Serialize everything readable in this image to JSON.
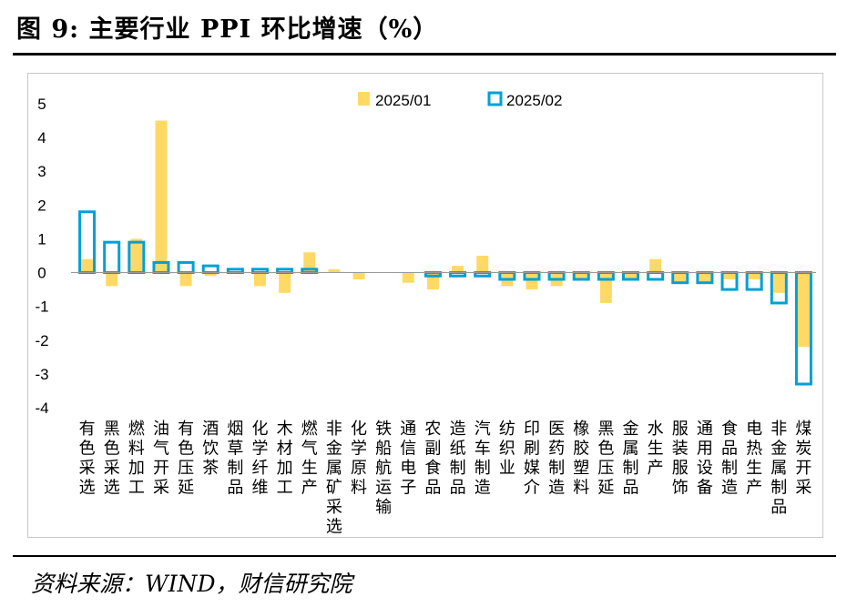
{
  "title": "图 9:  主要行业 PPI 环比增速（%）",
  "source": "资料来源：WIND，财信研究院",
  "chart_data": {
    "type": "bar",
    "title": "主要行业 PPI 环比增速（%）",
    "xlabel": "",
    "ylabel": "",
    "ylim": [
      -4,
      5
    ],
    "yticks": [
      "5",
      "4",
      "3",
      "2",
      "1",
      "0",
      "-1",
      "-2",
      "-3",
      "-4"
    ],
    "grid": false,
    "legend_position": "top-center",
    "categories": [
      "有色采选",
      "黑色采选",
      "燃料加工",
      "油气开采",
      "有色压延",
      "酒饮茶",
      "烟草制品",
      "化学纤维",
      "木材加工",
      "燃气生产",
      "非金属矿采选",
      "化学原料",
      "铁船航运输",
      "通信电子",
      "农副食品",
      "造纸制品",
      "汽车制造",
      "纺织业",
      "印刷媒介",
      "医药制造",
      "橡胶塑料",
      "黑色压延",
      "金属制品",
      "水生产",
      "服装服饰",
      "通用设备",
      "食品制造",
      "电热生产",
      "非金属制品",
      "煤炭开采"
    ],
    "series": [
      {
        "name": "2025/01",
        "color": "#FFD966",
        "style": "filled",
        "values": [
          0.4,
          -0.4,
          1.0,
          4.5,
          -0.4,
          -0.1,
          0.0,
          -0.4,
          -0.6,
          0.6,
          0.1,
          -0.2,
          0.0,
          -0.3,
          -0.5,
          0.2,
          0.5,
          -0.4,
          -0.5,
          -0.4,
          -0.2,
          -0.9,
          -0.2,
          0.4,
          -0.3,
          -0.3,
          -0.2,
          -0.2,
          -0.6,
          -2.2
        ]
      },
      {
        "name": "2025/02",
        "color": "#00A0D6",
        "style": "outline",
        "values": [
          1.8,
          0.9,
          0.9,
          0.3,
          0.3,
          0.2,
          0.1,
          0.1,
          0.1,
          0.1,
          0.0,
          0.0,
          0.0,
          0.0,
          -0.1,
          -0.1,
          -0.1,
          -0.2,
          -0.2,
          -0.2,
          -0.2,
          -0.2,
          -0.2,
          -0.2,
          -0.3,
          -0.3,
          -0.5,
          -0.5,
          -0.9,
          -3.3
        ]
      }
    ]
  }
}
